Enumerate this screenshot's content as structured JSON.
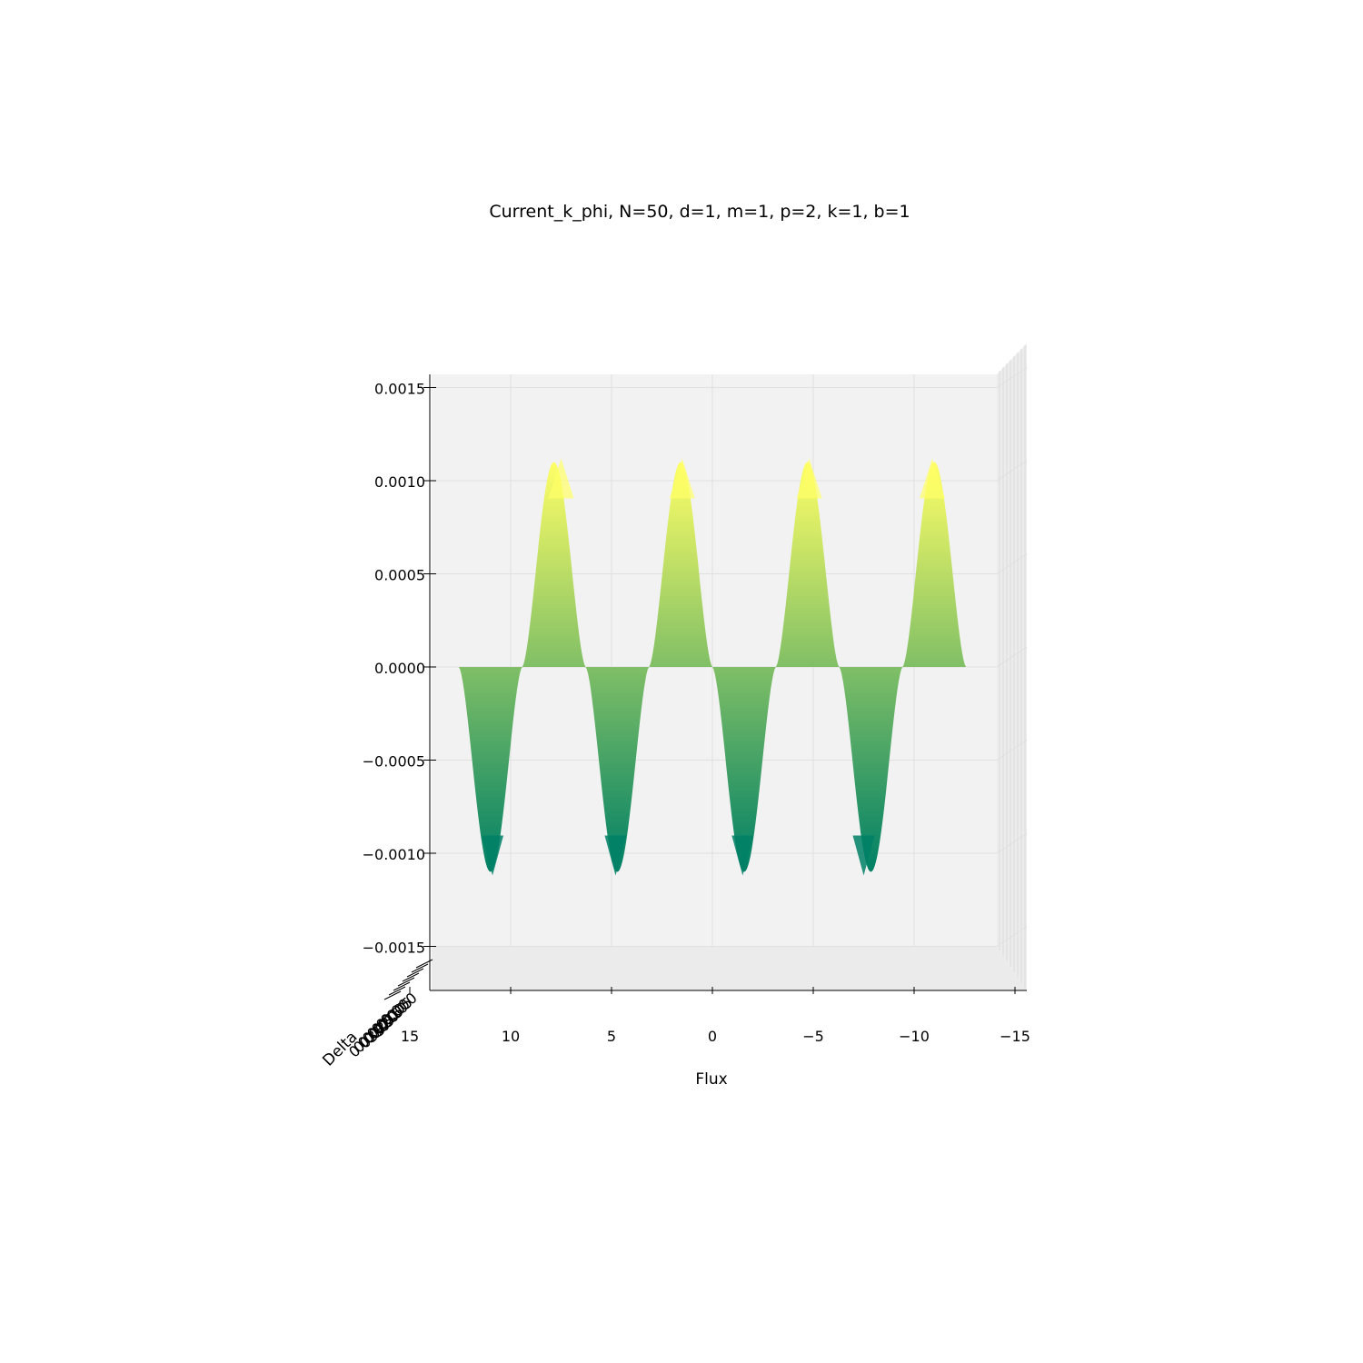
{
  "chart_data": {
    "type": "surface",
    "title": "Current_k_phi, N=50, d=1, m=1, p=2, k=1, b=1",
    "xlabel": "Flux",
    "ylabel": "Delta",
    "zlabel": "",
    "colormap": "summer",
    "colors": {
      "low": "#008066",
      "high": "#ffff66",
      "pane": "#f2f2f2",
      "grid": "#e0e0e0"
    },
    "xlim": [
      15,
      -15
    ],
    "zlim": [
      -0.0015,
      0.0015
    ],
    "x_ticks": [
      "15",
      "10",
      "5",
      "0",
      "−5",
      "−10",
      "−15"
    ],
    "x_tick_values": [
      15,
      10,
      5,
      0,
      -5,
      -10,
      -15
    ],
    "z_ticks": [
      "0.0015",
      "0.0010",
      "0.0005",
      "0.0000",
      "−0.0005",
      "−0.0010",
      "−0.0015"
    ],
    "z_tick_values": [
      0.0015,
      0.001,
      0.0005,
      0.0,
      -0.0005,
      -0.001,
      -0.0015
    ],
    "y_ticks": [
      "0.000",
      "0.005",
      "0.010",
      "0.015",
      "0.020",
      "0.025",
      "0.030",
      "0.035"
    ],
    "flux_range": [
      12.57,
      -12.57
    ],
    "peak_amplitude": 0.0011,
    "peaks": [
      {
        "flux": 7.5,
        "value": 0.0011
      },
      {
        "flux": 1.5,
        "value": 0.0011
      },
      {
        "flux": -4.8,
        "value": 0.0011
      },
      {
        "flux": -10.9,
        "value": 0.0011
      }
    ],
    "troughs": [
      {
        "flux": 10.9,
        "value": -0.0011
      },
      {
        "flux": 4.8,
        "value": -0.0011
      },
      {
        "flux": -1.5,
        "value": -0.0011
      },
      {
        "flux": -7.5,
        "value": -0.0011
      }
    ]
  }
}
